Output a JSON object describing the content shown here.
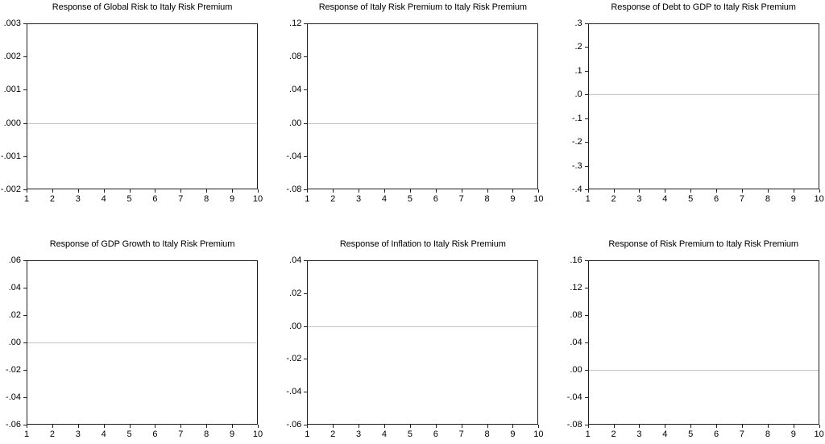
{
  "figure": {
    "background": "#ffffff",
    "text_color": "#000000",
    "frame_color": "#1f1f1f",
    "zero_line_color": "#c4c4c4"
  },
  "chart_data": [
    {
      "id": "global-risk",
      "type": "line",
      "title": "Response of Global Risk to Italy Risk Premium",
      "x": [
        1,
        2,
        3,
        4,
        5,
        6,
        7,
        8,
        9,
        10
      ],
      "y_tick_labels": [
        ".003",
        ".002",
        ".001",
        ".000",
        "-.001",
        "-.002"
      ],
      "ylim": [
        -0.002,
        0.003
      ],
      "xlabel": "",
      "ylabel": "",
      "grid": false,
      "legend": "none",
      "series": [
        {
          "name": "zero reference line",
          "color": "#c4c4c4",
          "values": [
            0,
            0,
            0,
            0,
            0,
            0,
            0,
            0,
            0,
            0
          ]
        }
      ]
    },
    {
      "id": "italy-risk-premium",
      "type": "line",
      "title": "Response of Italy Risk Premium to Italy Risk Premium",
      "x": [
        1,
        2,
        3,
        4,
        5,
        6,
        7,
        8,
        9,
        10
      ],
      "y_tick_labels": [
        ".12",
        ".08",
        ".04",
        ".00",
        "-.04",
        "-.08"
      ],
      "ylim": [
        -0.08,
        0.12
      ],
      "xlabel": "",
      "ylabel": "",
      "grid": false,
      "legend": "none",
      "series": [
        {
          "name": "zero reference line",
          "color": "#c4c4c4",
          "values": [
            0,
            0,
            0,
            0,
            0,
            0,
            0,
            0,
            0,
            0
          ]
        }
      ]
    },
    {
      "id": "debt-to-gdp",
      "type": "line",
      "title": "Response of Debt to GDP to Italy Risk Premium",
      "x": [
        1,
        2,
        3,
        4,
        5,
        6,
        7,
        8,
        9,
        10
      ],
      "y_tick_labels": [
        ".3",
        ".2",
        ".1",
        ".0",
        "-.1",
        "-.2",
        "-.3",
        "-.4"
      ],
      "ylim": [
        -0.4,
        0.3
      ],
      "xlabel": "",
      "ylabel": "",
      "grid": false,
      "legend": "none",
      "series": [
        {
          "name": "zero reference line",
          "color": "#c4c4c4",
          "values": [
            0,
            0,
            0,
            0,
            0,
            0,
            0,
            0,
            0,
            0
          ]
        }
      ]
    },
    {
      "id": "gdp-growth",
      "type": "line",
      "title": "Response of GDP Growth to Italy Risk Premium",
      "x": [
        1,
        2,
        3,
        4,
        5,
        6,
        7,
        8,
        9,
        10
      ],
      "y_tick_labels": [
        ".06",
        ".04",
        ".02",
        ".00",
        "-.02",
        "-.04",
        "-.06"
      ],
      "ylim": [
        -0.06,
        0.06
      ],
      "xlabel": "",
      "ylabel": "",
      "grid": false,
      "legend": "none",
      "series": [
        {
          "name": "zero reference line",
          "color": "#c4c4c4",
          "values": [
            0,
            0,
            0,
            0,
            0,
            0,
            0,
            0,
            0,
            0
          ]
        }
      ]
    },
    {
      "id": "inflation",
      "type": "line",
      "title": "Response of Inflation to Italy Risk Premium",
      "x": [
        1,
        2,
        3,
        4,
        5,
        6,
        7,
        8,
        9,
        10
      ],
      "y_tick_labels": [
        ".04",
        ".02",
        ".00",
        "-.02",
        "-.04",
        "-.06"
      ],
      "ylim": [
        -0.06,
        0.04
      ],
      "xlabel": "",
      "ylabel": "",
      "grid": false,
      "legend": "none",
      "series": [
        {
          "name": "zero reference line",
          "color": "#c4c4c4",
          "values": [
            0,
            0,
            0,
            0,
            0,
            0,
            0,
            0,
            0,
            0
          ]
        }
      ]
    },
    {
      "id": "risk-premium",
      "type": "line",
      "title": "Response of Risk Premium to Italy Risk Premium",
      "x": [
        1,
        2,
        3,
        4,
        5,
        6,
        7,
        8,
        9,
        10
      ],
      "y_tick_labels": [
        ".16",
        ".12",
        ".08",
        ".04",
        ".00",
        "-.04",
        "-.08"
      ],
      "ylim": [
        -0.08,
        0.16
      ],
      "xlabel": "",
      "ylabel": "",
      "grid": false,
      "legend": "none",
      "series": [
        {
          "name": "zero reference line",
          "color": "#c4c4c4",
          "values": [
            0,
            0,
            0,
            0,
            0,
            0,
            0,
            0,
            0,
            0
          ]
        }
      ]
    }
  ]
}
